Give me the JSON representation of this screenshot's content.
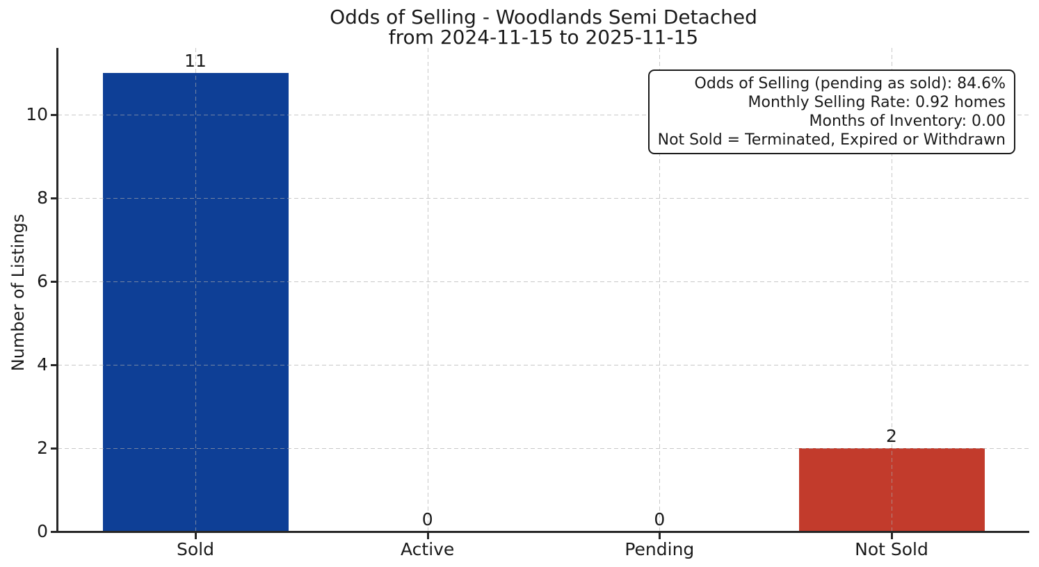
{
  "chart_data": {
    "type": "bar",
    "title_lines": [
      "Odds of Selling - Woodlands Semi Detached",
      "from 2024-11-15 to 2025-11-15"
    ],
    "xlabel": "",
    "ylabel": "Number of Listings",
    "categories": [
      "Sold",
      "Active",
      "Pending",
      "Not Sold"
    ],
    "values": [
      11,
      0,
      0,
      2
    ],
    "bar_colors": [
      "#0e3f96",
      null,
      null,
      "#c23b2c"
    ],
    "yticks": [
      0,
      2,
      4,
      6,
      8,
      10
    ],
    "ylim": [
      0,
      11.6
    ],
    "grid": {
      "style": "dashed",
      "axes": "both",
      "color": "#c8c8c8"
    },
    "annotation": {
      "position": "top-right",
      "lines": [
        "Odds of Selling (pending as sold): 84.6%",
        "Monthly Selling Rate: 0.92 homes",
        "Months of Inventory: 0.00",
        "Not Sold = Terminated, Expired or Withdrawn"
      ]
    },
    "colors": {
      "sold_bar": "#0e3f96",
      "not_sold_bar": "#c23b2c",
      "axis": "#262626",
      "text": "#1a1a1a",
      "background": "#ffffff"
    }
  }
}
